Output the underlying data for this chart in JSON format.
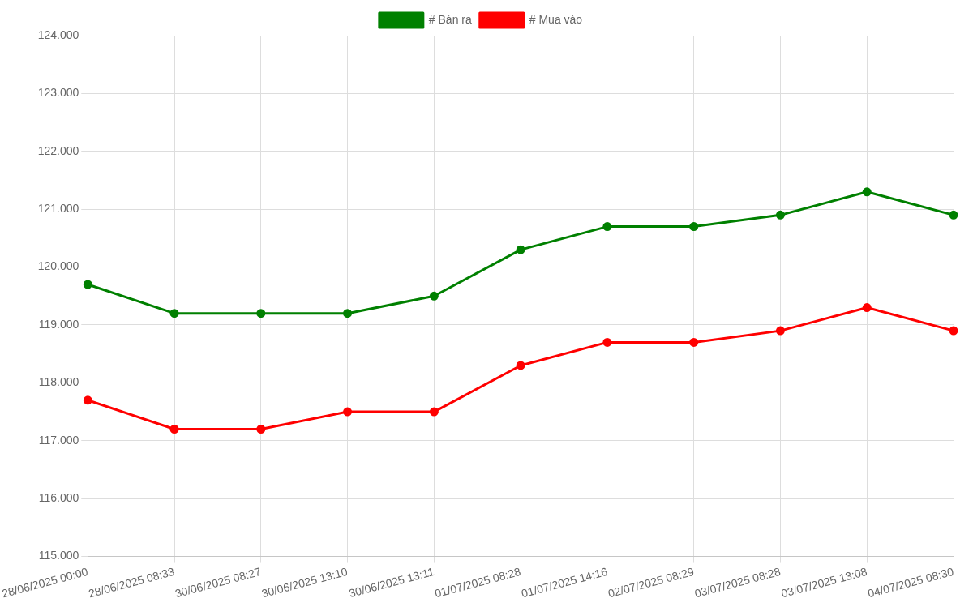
{
  "chart_data": {
    "type": "line",
    "categories": [
      "28/06/2025 00:00",
      "28/06/2025 08:33",
      "30/06/2025 08:27",
      "30/06/2025 13:10",
      "30/06/2025 13:11",
      "01/07/2025 08:28",
      "01/07/2025 14:16",
      "02/07/2025 08:29",
      "03/07/2025 08:28",
      "03/07/2025 13:08",
      "04/07/2025 08:30"
    ],
    "series": [
      {
        "name": "# Bán ra",
        "color": "#008000",
        "values": [
          119700,
          119200,
          119200,
          119200,
          119500,
          120300,
          120700,
          120700,
          120900,
          121300,
          120900
        ]
      },
      {
        "name": "# Mua vào",
        "color": "#ff0000",
        "values": [
          117700,
          117200,
          117200,
          117500,
          117500,
          118300,
          118700,
          118700,
          118900,
          119300,
          118900
        ]
      }
    ],
    "ylim": [
      115000,
      124000
    ],
    "yticks": [
      {
        "value": 115000,
        "label": "115.000"
      },
      {
        "value": 116000,
        "label": "116.000"
      },
      {
        "value": 117000,
        "label": "117.000"
      },
      {
        "value": 118000,
        "label": "118.000"
      },
      {
        "value": 119000,
        "label": "119.000"
      },
      {
        "value": 120000,
        "label": "120.000"
      },
      {
        "value": 121000,
        "label": "121.000"
      },
      {
        "value": 122000,
        "label": "122.000"
      },
      {
        "value": 123000,
        "label": "123.000"
      },
      {
        "value": 124000,
        "label": "124.000"
      }
    ],
    "grid": true,
    "legend": "top",
    "marker": "circle",
    "line_style": "solid"
  }
}
